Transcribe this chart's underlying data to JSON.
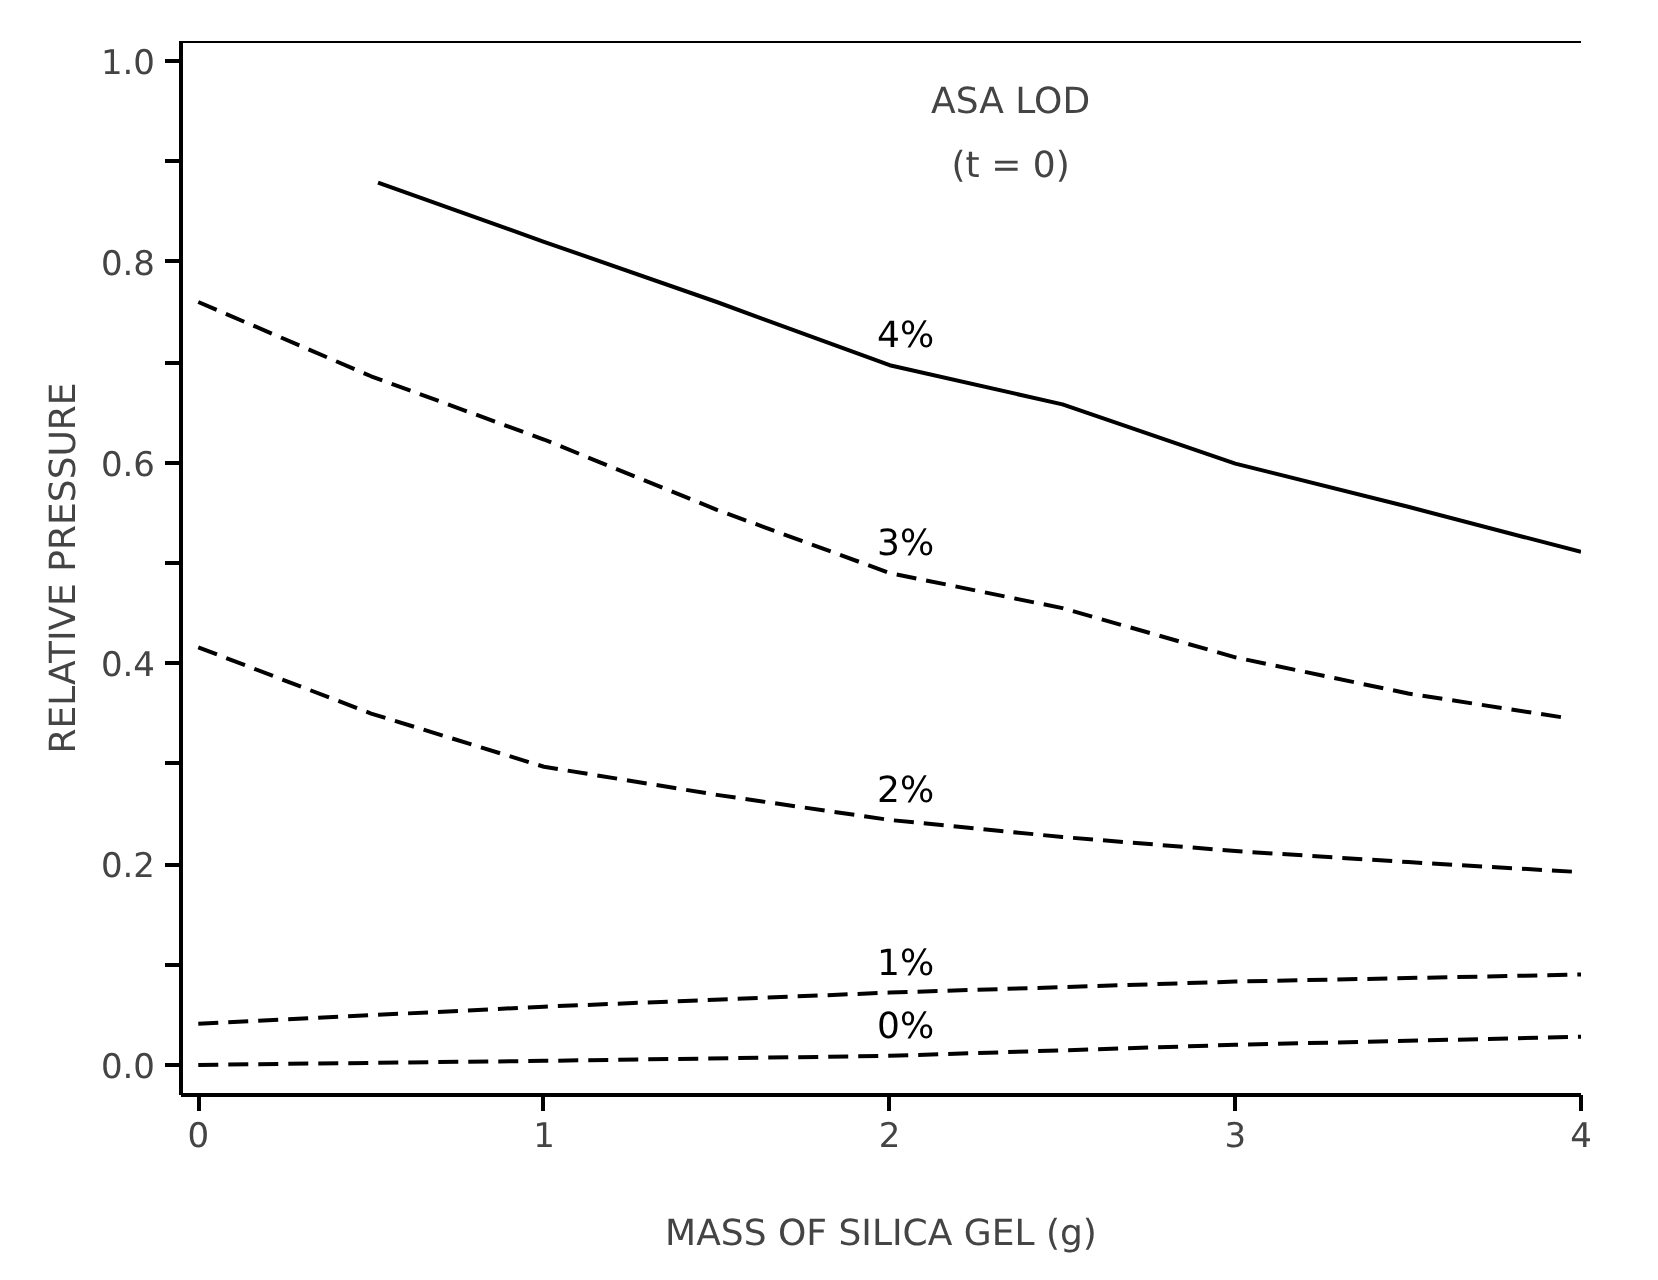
{
  "chart_data": {
    "type": "line",
    "xlabel": "MASS OF SILICA GEL (g)",
    "ylabel": "RELATIVE PRESSURE",
    "annotations": [
      "ASA LOD",
      "(t = 0)"
    ],
    "xlim": [
      -0.05,
      4.0
    ],
    "ylim": [
      -0.03,
      1.02
    ],
    "xticks": [
      0,
      1,
      2,
      3,
      4
    ],
    "yticks": [
      {
        "value": 0,
        "label": "0.0"
      },
      {
        "value": 0.1,
        "label": null
      },
      0.2,
      {
        "value": 0.3,
        "label": null
      },
      0.4,
      {
        "value": 0.5,
        "label": null
      },
      0.6,
      {
        "value": 0.7,
        "label": null
      },
      0.8,
      {
        "value": 0.9,
        "label": null
      },
      {
        "value": 1.0,
        "label": "1.0"
      }
    ],
    "grid": false,
    "marker": "none",
    "series": [
      {
        "name": "4%",
        "color": "#000000",
        "line_style": "solid",
        "x": [
          0.52,
          1,
          1.5,
          2,
          2.5,
          3,
          3.5,
          4
        ],
        "values": [
          0.879,
          0.82,
          0.76,
          0.697,
          0.658,
          0.599,
          0.556,
          0.511
        ]
      },
      {
        "name": "3%",
        "color": "#000000",
        "line_style": "dashed",
        "x": [
          0,
          0.5,
          1,
          1.5,
          2,
          2.5,
          3,
          3.5,
          3.95
        ],
        "values": [
          0.76,
          0.686,
          0.623,
          0.553,
          0.49,
          0.455,
          0.406,
          0.37,
          0.346
        ]
      },
      {
        "name": "2%",
        "color": "#000000",
        "line_style": "dashed",
        "x": [
          0,
          0.5,
          1,
          1.5,
          2,
          2.5,
          3,
          3.5,
          4
        ],
        "values": [
          0.416,
          0.35,
          0.297,
          0.269,
          0.244,
          0.227,
          0.213,
          0.202,
          0.192
        ]
      },
      {
        "name": "1%",
        "color": "#000000",
        "line_style": "dashed",
        "x": [
          0,
          1,
          2,
          3,
          4
        ],
        "values": [
          0.041,
          0.058,
          0.072,
          0.083,
          0.09
        ]
      },
      {
        "name": "0%",
        "color": "#000000",
        "line_style": "dashed",
        "x": [
          0,
          1,
          2,
          3,
          4
        ],
        "values": [
          0.0,
          0.004,
          0.009,
          0.02,
          0.028
        ]
      }
    ]
  }
}
